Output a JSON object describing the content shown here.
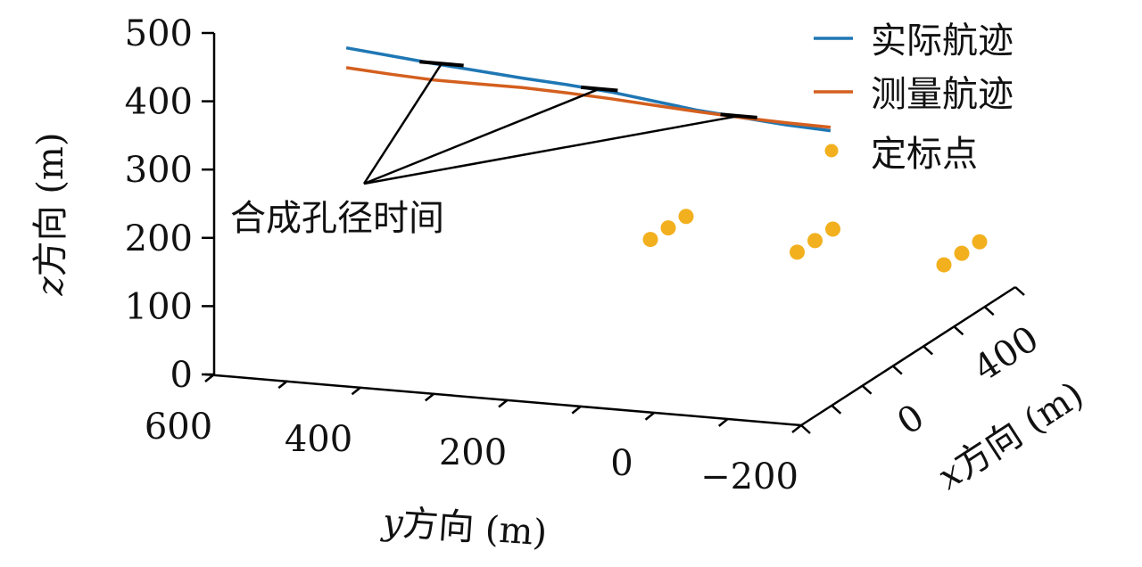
{
  "chart_data": {
    "type": "line",
    "projection": "3d",
    "series": [
      {
        "name": "实际航迹",
        "color": "#1f77b4",
        "points": [
          {
            "y": 420,
            "z": 495
          },
          {
            "y": 360,
            "z": 489
          },
          {
            "y": 300,
            "z": 483
          },
          {
            "y": 240,
            "z": 478
          },
          {
            "y": 180,
            "z": 473
          },
          {
            "y": 120,
            "z": 469
          },
          {
            "y": 60,
            "z": 464
          },
          {
            "y": 0,
            "z": 456
          },
          {
            "y": -60,
            "z": 448
          },
          {
            "y": -120,
            "z": 443
          },
          {
            "y": -180,
            "z": 438
          },
          {
            "y": -240,
            "z": 435
          }
        ]
      },
      {
        "name": "测量航迹",
        "color": "#d45f1e",
        "points": [
          {
            "y": 420,
            "z": 466
          },
          {
            "y": 360,
            "z": 462
          },
          {
            "y": 300,
            "z": 459
          },
          {
            "y": 240,
            "z": 459
          },
          {
            "y": 180,
            "z": 459
          },
          {
            "y": 120,
            "z": 457
          },
          {
            "y": 60,
            "z": 454
          },
          {
            "y": 0,
            "z": 450
          },
          {
            "y": -60,
            "z": 446
          },
          {
            "y": -120,
            "z": 443
          },
          {
            "y": -180,
            "z": 441
          },
          {
            "y": -240,
            "z": 440
          }
        ]
      },
      {
        "name": "定标点",
        "color": "#f2b01e",
        "marker": "point",
        "points": [
          {
            "x": 300,
            "y": 200,
            "z": 100
          },
          {
            "x": 350,
            "y": 200,
            "z": 100
          },
          {
            "x": 400,
            "y": 200,
            "z": 100
          },
          {
            "x": 300,
            "y": 0,
            "z": 100
          },
          {
            "x": 350,
            "y": 0,
            "z": 100
          },
          {
            "x": 400,
            "y": 0,
            "z": 100
          },
          {
            "x": 300,
            "y": -200,
            "z": 100
          },
          {
            "x": 350,
            "y": -200,
            "z": 100
          },
          {
            "x": 400,
            "y": -200,
            "z": 100
          }
        ]
      }
    ],
    "synthetic_aperture_segments": [
      {
        "y_start": 320,
        "y_end": 260,
        "z": 484
      },
      {
        "y_start": 100,
        "y_end": 50,
        "z": 467
      },
      {
        "y_start": -90,
        "y_end": -140,
        "z": 445
      }
    ],
    "annotation": {
      "text": "合成孔径时间"
    },
    "axes": {
      "z": {
        "label_var": "z",
        "label_rest": "方向 (m)",
        "range": [
          0,
          500
        ],
        "ticks": [
          "0",
          "100",
          "200",
          "300",
          "400",
          "500"
        ]
      },
      "y": {
        "label_var": "y",
        "label_rest": "方向 (m)",
        "range": [
          600,
          -200
        ],
        "ticks": [
          "600",
          "400",
          "200",
          "0",
          "−200"
        ]
      },
      "x": {
        "label_var": "x",
        "label_rest": "方向 (m)",
        "ticks": [
          "0",
          "400"
        ]
      }
    },
    "legend_placement": "top-right",
    "grid": false
  }
}
